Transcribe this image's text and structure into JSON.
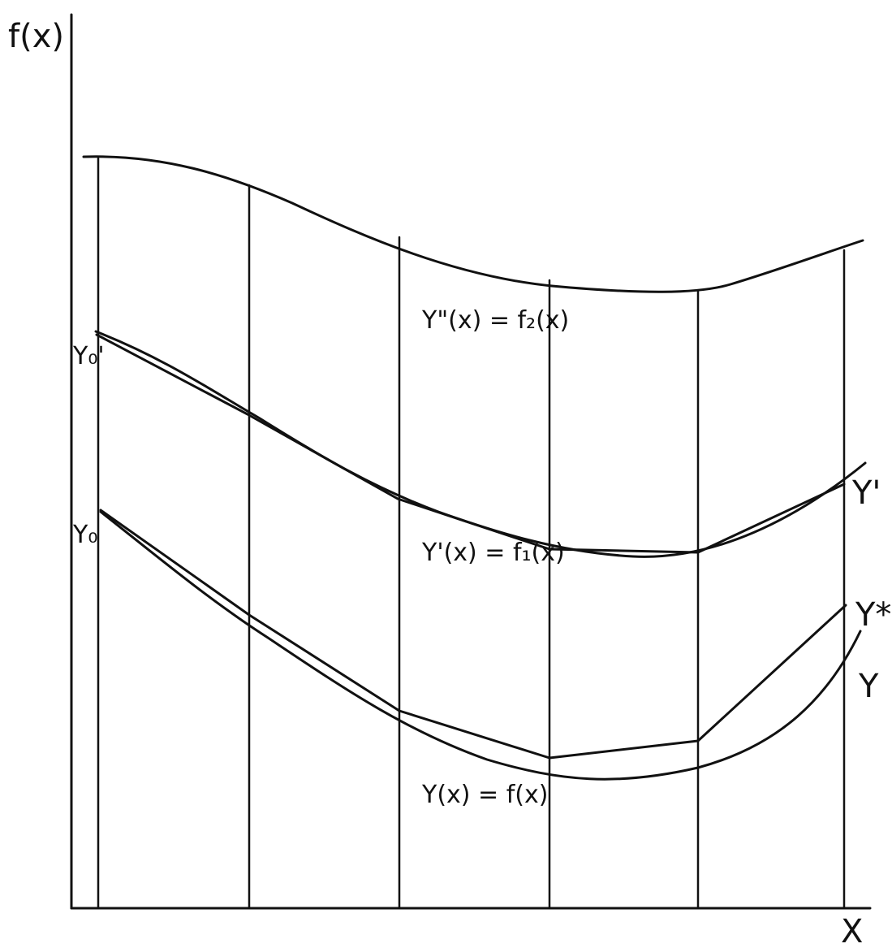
{
  "axes": {
    "y_label": "f(x)",
    "x_label": "X"
  },
  "curve_labels": {
    "second_derivative": "Y\"(x) = f₂(x)",
    "first_derivative": "Y'(x) = f₁(x)",
    "function": "Y(x) = f(x)"
  },
  "end_labels": {
    "y_prime": "Y'",
    "y_star": "Y*",
    "y": "Y"
  },
  "start_labels": {
    "y0_prime": "Y₀'",
    "y0": "Y₀"
  },
  "colors": {
    "ink": "#111111",
    "paper": "#ffffff"
  }
}
